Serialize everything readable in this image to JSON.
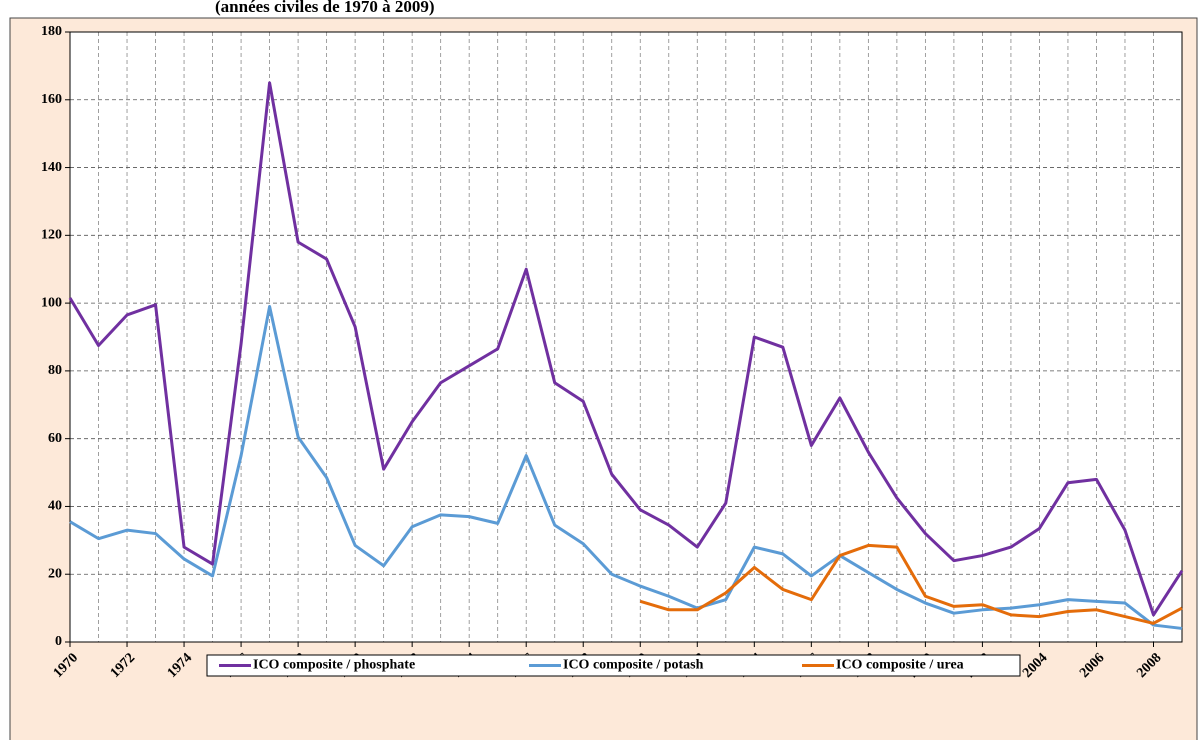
{
  "chart_data": {
    "type": "line",
    "subtitle": "(années civiles de 1970 à 2009)",
    "x": [
      1970,
      1971,
      1972,
      1973,
      1974,
      1975,
      1976,
      1977,
      1978,
      1979,
      1980,
      1981,
      1982,
      1983,
      1984,
      1985,
      1986,
      1987,
      1988,
      1989,
      1990,
      1991,
      1992,
      1993,
      1994,
      1995,
      1996,
      1997,
      1998,
      1999,
      2000,
      2001,
      2002,
      2003,
      2004,
      2005,
      2006,
      2007,
      2008,
      2009
    ],
    "xlim": [
      1970,
      2009
    ],
    "xticks": [
      1970,
      1972,
      1974,
      1976,
      1978,
      1980,
      1982,
      1984,
      1986,
      1988,
      1990,
      1992,
      1994,
      1996,
      1998,
      2000,
      2002,
      2004,
      2006,
      2008
    ],
    "ylim": [
      0,
      180
    ],
    "yticks": [
      0,
      20,
      40,
      60,
      80,
      100,
      120,
      140,
      160,
      180
    ],
    "grid": true,
    "legend": "bottom",
    "series": [
      {
        "name": "ICO composite / phosphate",
        "color": "#7030a0",
        "values": [
          101.5,
          87.5,
          96.5,
          99.5,
          28,
          23,
          88,
          165,
          118,
          113,
          93,
          51,
          65,
          76.5,
          81.5,
          86.5,
          110,
          76.5,
          71,
          49.5,
          39,
          34.5,
          28,
          41,
          90,
          87,
          58,
          72,
          56,
          42.5,
          32,
          24,
          25.5,
          28,
          33.5,
          47,
          48,
          33,
          8,
          21
        ]
      },
      {
        "name": "ICO composite / potash",
        "color": "#5b9bd5",
        "values": [
          35.5,
          30.5,
          33,
          32,
          24.5,
          19.5,
          55,
          99,
          60.5,
          48.5,
          28.5,
          22.5,
          34,
          37.5,
          37,
          35,
          55,
          34.5,
          29,
          20,
          16.5,
          13.5,
          10,
          12.5,
          28,
          26,
          19.5,
          25.5,
          20.5,
          15.5,
          11.5,
          8.5,
          9.5,
          10,
          11,
          12.5,
          12,
          11.5,
          5,
          4
        ]
      },
      {
        "name": "ICO composite / urea",
        "color": "#e46c0a",
        "values": [
          null,
          null,
          null,
          null,
          null,
          null,
          null,
          null,
          null,
          null,
          null,
          null,
          null,
          null,
          null,
          null,
          null,
          null,
          null,
          null,
          12,
          9.5,
          9.5,
          14.5,
          22,
          15.5,
          12.5,
          25.5,
          28.5,
          28,
          13.5,
          10.5,
          11,
          8,
          7.5,
          9,
          9.5,
          7.5,
          5.5,
          10
        ]
      }
    ]
  }
}
